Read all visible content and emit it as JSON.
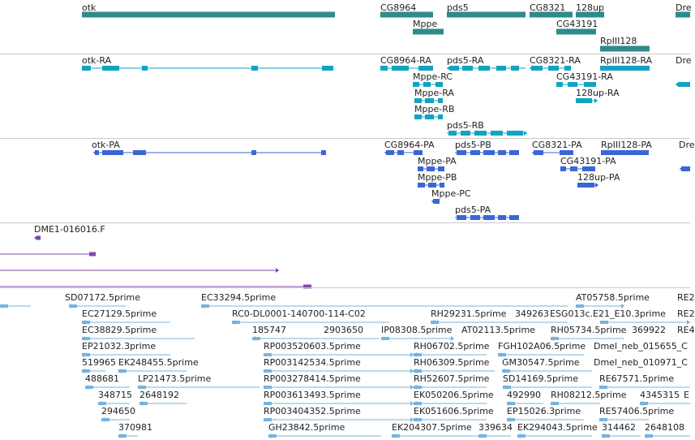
{
  "colors": {
    "gene": "#2e8b8b",
    "transcript": "#12a3c4",
    "protein": "#3a66d6",
    "cdna": "#7b4aaa",
    "est": "#74b4e0",
    "separator": "#c9c9c9"
  },
  "tracks": {
    "genes": {
      "labels": [
        "otk",
        "CG8964",
        "pds5",
        "CG8321",
        "128up",
        "Dre",
        "Mppe",
        "CG43191",
        "RpIII128"
      ]
    },
    "transcripts": {
      "labels": [
        "otk-RA",
        "CG8964-RA",
        "pds5-RA",
        "CG8321-RA",
        "RpIII128-RA",
        "Dre",
        "Mppe-RC",
        "CG43191-RA",
        "Mppe-RA",
        "128up-RA",
        "Mppe-RB",
        "pds5-RB"
      ]
    },
    "proteins": {
      "labels": [
        "otk-PA",
        "CG8964-PA",
        "pds5-PB",
        "CG8321-PA",
        "RpIII128-PA",
        "Dre",
        "Mppe-PA",
        "CG43191-PA",
        "Mppe-PB",
        "128up-PA",
        "Mppe-PC",
        "pds5-PA"
      ]
    },
    "cdna": {
      "labels": [
        "DME1-016016.F"
      ]
    },
    "est": {
      "labels": [
        "SD07172.5prime",
        "EC33294.5prime",
        "AT05758.5prime",
        "RE2",
        "EC27129.5prime",
        "RC0-DL0001-140700-114-C02",
        "RH29231.5prime",
        "349263",
        "ESG013c.E21_E10.3prime",
        "RE2",
        "EC38829.5prime",
        "185747",
        "2903650",
        "IP08308.5prime",
        "AT02113.5prime",
        "RH05734.5prime",
        "369922",
        "RE4",
        "EP21032.3prime",
        "RP003520603.5prime",
        "RH06702.5prime",
        "FGH102A06.5prime",
        "Dmel_neb_015655_C",
        "519965",
        "EK248455.5prime",
        "RP003142534.5prime",
        "RH06309.5prime",
        "GM30547.5prime",
        "Dmel_neb_010971_C",
        "488681",
        "LP21473.5prime",
        "RP003278414.5prime",
        "RH52607.5prime",
        "SD14169.5prime",
        "RE67571.5prime",
        "348715",
        "2648192",
        "RP003613493.5prime",
        "EK050206.5prime",
        "492990",
        "RH08212.5prime",
        "4345315",
        "E",
        "294650",
        "RP003404352.5prime",
        "EK051606.5prime",
        "EP15026.3prime",
        "RE57406.5prime",
        "370981",
        "GH23842.5prime",
        "EK204307.5prime",
        "339634",
        "EK294043.5prime",
        "314462",
        "2648108"
      ]
    }
  }
}
